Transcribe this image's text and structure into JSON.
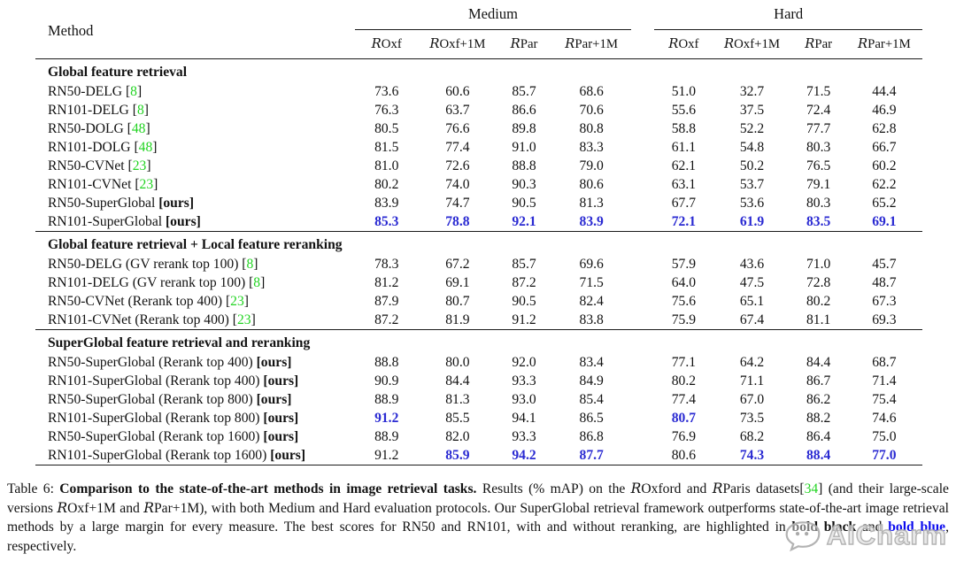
{
  "table": {
    "method_label": "Method",
    "groups": [
      "Medium",
      "Hard"
    ],
    "columns": [
      "ROxf",
      "ROxf+1M",
      "RPar",
      "RPar+1M"
    ],
    "sections": [
      {
        "title": "Global feature retrieval",
        "rows": [
          {
            "name": "RN50-DELG",
            "tag": "[8]",
            "tag_type": "cite",
            "values": [
              "73.6",
              "60.6",
              "85.7",
              "68.6",
              "51.0",
              "32.7",
              "71.5",
              "44.4"
            ],
            "blue": []
          },
          {
            "name": "RN101-DELG",
            "tag": "[8]",
            "tag_type": "cite",
            "values": [
              "76.3",
              "63.7",
              "86.6",
              "70.6",
              "55.6",
              "37.5",
              "72.4",
              "46.9"
            ],
            "blue": []
          },
          {
            "name": "RN50-DOLG",
            "tag": "[48]",
            "tag_type": "cite",
            "values": [
              "80.5",
              "76.6",
              "89.8",
              "80.8",
              "58.8",
              "52.2",
              "77.7",
              "62.8"
            ],
            "blue": []
          },
          {
            "name": "RN101-DOLG",
            "tag": "[48]",
            "tag_type": "cite",
            "values": [
              "81.5",
              "77.4",
              "91.0",
              "83.3",
              "61.1",
              "54.8",
              "80.3",
              "66.7"
            ],
            "blue": []
          },
          {
            "name": "RN50-CVNet",
            "tag": "[23]",
            "tag_type": "cite",
            "values": [
              "81.0",
              "72.6",
              "88.8",
              "79.0",
              "62.1",
              "50.2",
              "76.5",
              "60.2"
            ],
            "blue": []
          },
          {
            "name": "RN101-CVNet",
            "tag": "[23]",
            "tag_type": "cite",
            "values": [
              "80.2",
              "74.0",
              "90.3",
              "80.6",
              "63.1",
              "53.7",
              "79.1",
              "62.2"
            ],
            "blue": []
          },
          {
            "name": "RN50-SuperGlobal",
            "tag": "[ours]",
            "tag_type": "ours",
            "values": [
              "83.9",
              "74.7",
              "90.5",
              "81.3",
              "67.7",
              "53.6",
              "80.3",
              "65.2"
            ],
            "blue": []
          },
          {
            "name": "RN101-SuperGlobal",
            "tag": "[ours]",
            "tag_type": "ours",
            "values": [
              "85.3",
              "78.8",
              "92.1",
              "83.9",
              "72.1",
              "61.9",
              "83.5",
              "69.1"
            ],
            "blue": [
              0,
              1,
              2,
              3,
              4,
              5,
              6,
              7
            ]
          }
        ]
      },
      {
        "title": "Global feature retrieval + Local feature reranking",
        "rows": [
          {
            "name": "RN50-DELG (GV rerank top 100)",
            "tag": "[8]",
            "tag_type": "cite",
            "values": [
              "78.3",
              "67.2",
              "85.7",
              "69.6",
              "57.9",
              "43.6",
              "71.0",
              "45.7"
            ],
            "blue": []
          },
          {
            "name": "RN101-DELG (GV rerank top 100)",
            "tag": "[8]",
            "tag_type": "cite",
            "values": [
              "81.2",
              "69.1",
              "87.2",
              "71.5",
              "64.0",
              "47.5",
              "72.8",
              "48.7"
            ],
            "blue": []
          },
          {
            "name": "RN50-CVNet (Rerank top 400)",
            "tag": "[23]",
            "tag_type": "cite",
            "values": [
              "87.9",
              "80.7",
              "90.5",
              "82.4",
              "75.6",
              "65.1",
              "80.2",
              "67.3"
            ],
            "blue": []
          },
          {
            "name": "RN101-CVNet (Rerank top 400)",
            "tag": "[23]",
            "tag_type": "cite",
            "values": [
              "87.2",
              "81.9",
              "91.2",
              "83.8",
              "75.9",
              "67.4",
              "81.1",
              "69.3"
            ],
            "blue": []
          }
        ]
      },
      {
        "title": "SuperGlobal feature retrieval and reranking",
        "rows": [
          {
            "name": "RN50-SuperGlobal (Rerank top 400)",
            "tag": "[ours]",
            "tag_type": "ours",
            "values": [
              "88.8",
              "80.0",
              "92.0",
              "83.4",
              "77.1",
              "64.2",
              "84.4",
              "68.7"
            ],
            "blue": []
          },
          {
            "name": "RN101-SuperGlobal (Rerank top 400)",
            "tag": "[ours]",
            "tag_type": "ours",
            "values": [
              "90.9",
              "84.4",
              "93.3",
              "84.9",
              "80.2",
              "71.1",
              "86.7",
              "71.4"
            ],
            "blue": []
          },
          {
            "name": "RN50-SuperGlobal (Rerank top 800)",
            "tag": "[ours]",
            "tag_type": "ours",
            "values": [
              "88.9",
              "81.3",
              "93.0",
              "85.4",
              "77.4",
              "67.0",
              "86.2",
              "75.4"
            ],
            "blue": []
          },
          {
            "name": "RN101-SuperGlobal (Rerank top 800)",
            "tag": "[ours]",
            "tag_type": "ours",
            "values": [
              "91.2",
              "85.5",
              "94.1",
              "86.5",
              "80.7",
              "73.5",
              "88.2",
              "74.6"
            ],
            "blue": [
              0,
              4
            ]
          },
          {
            "name": "RN50-SuperGlobal (Rerank top 1600)",
            "tag": "[ours]",
            "tag_type": "ours",
            "values": [
              "88.9",
              "82.0",
              "93.3",
              "86.8",
              "76.9",
              "68.2",
              "86.4",
              "75.0"
            ],
            "blue": []
          },
          {
            "name": "RN101-SuperGlobal (Rerank top 1600)",
            "tag": "[ours]",
            "tag_type": "ours",
            "values": [
              "91.2",
              "85.9",
              "94.2",
              "87.7",
              "80.6",
              "74.3",
              "88.4",
              "77.0"
            ],
            "blue": [
              1,
              2,
              3,
              5,
              6,
              7
            ]
          }
        ]
      }
    ]
  },
  "caption": {
    "segments": [
      {
        "t": "Table 6: ",
        "s": ""
      },
      {
        "t": "Comparison to the state-of-the-art methods in image retrieval tasks.",
        "s": "b"
      },
      {
        "t": " Results (% mAP) on the ",
        "s": ""
      },
      {
        "t": "R",
        "s": "cal"
      },
      {
        "t": "Oxford and ",
        "s": ""
      },
      {
        "t": "R",
        "s": "cal"
      },
      {
        "t": "Paris datasets[",
        "s": ""
      },
      {
        "t": "34",
        "s": "green"
      },
      {
        "t": "] (and their large-scale versions ",
        "s": ""
      },
      {
        "t": "R",
        "s": "cal"
      },
      {
        "t": "Oxf+1M and ",
        "s": ""
      },
      {
        "t": "R",
        "s": "cal"
      },
      {
        "t": "Par+1M), with both Medium and Hard evaluation protocols. Our SuperGlobal retrieval framework outperforms state-of-the-art image retrieval methods by a large margin for every measure. The best scores for RN50 and RN101, with and without reranking, are highlighted in ",
        "s": ""
      },
      {
        "t": "bold black",
        "s": "b"
      },
      {
        "t": " and ",
        "s": ""
      },
      {
        "t": "bold blue",
        "s": "bblue"
      },
      {
        "t": ", respectively.",
        "s": ""
      }
    ]
  },
  "watermark": {
    "text": "AICharm"
  },
  "colors": {
    "cite_green": "#22d422",
    "value_blue": "#2a2ad2",
    "caption_blue": "#0b0bee"
  }
}
